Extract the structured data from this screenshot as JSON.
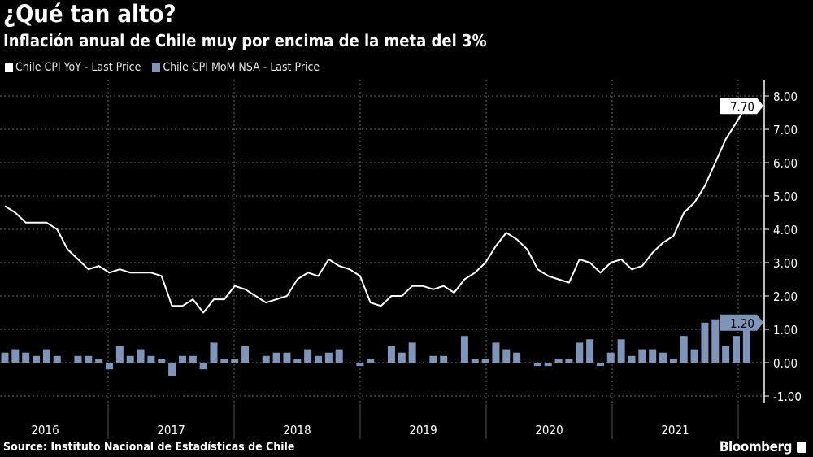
{
  "title": "¿Qué tan alto?",
  "subtitle": "Inflación anual de Chile muy por encima de la meta del 3%",
  "source": "Source: Instituto Nacional de Estadísticas de Chile",
  "brand": "Bloomberg",
  "chart_data": {
    "type": "line+bar",
    "legend_position": "top-left",
    "grid": true,
    "ylim": [
      -1.3,
      8.3
    ],
    "y_ticks": [
      "8.00",
      "7.00",
      "6.00",
      "5.00",
      "4.00",
      "3.00",
      "2.00",
      "1.00",
      "0.00",
      "-1.00"
    ],
    "y_tick_values": [
      8,
      7,
      6,
      5,
      4,
      3,
      2,
      1,
      0,
      -1
    ],
    "x_ticks": [
      "2016",
      "2017",
      "2018",
      "2019",
      "2020",
      "2021"
    ],
    "colors": {
      "line": "#ffffff",
      "bar": "#7e95b9",
      "grid": "#6a6a6a"
    },
    "series": [
      {
        "name": "Chile CPI YoY - Last Price",
        "type": "line",
        "last_label": "7.70",
        "values": [
          4.7,
          4.5,
          4.2,
          4.2,
          4.2,
          4.0,
          3.4,
          3.1,
          2.8,
          2.9,
          2.7,
          2.8,
          2.7,
          2.7,
          2.7,
          2.6,
          1.7,
          1.7,
          1.9,
          1.5,
          1.9,
          1.9,
          2.3,
          2.2,
          2.0,
          1.8,
          1.9,
          2.0,
          2.5,
          2.7,
          2.6,
          3.1,
          2.9,
          2.8,
          2.6,
          1.8,
          1.7,
          2.0,
          2.0,
          2.3,
          2.3,
          2.2,
          2.3,
          2.1,
          2.5,
          2.7,
          3.0,
          3.5,
          3.9,
          3.7,
          3.4,
          2.8,
          2.6,
          2.5,
          2.4,
          3.1,
          3.0,
          2.7,
          3.0,
          3.1,
          2.8,
          2.9,
          3.3,
          3.6,
          3.8,
          4.5,
          4.8,
          5.3,
          6.0,
          6.7,
          7.2,
          7.7
        ]
      },
      {
        "name": "Chile CPI MoM NSA - Last Price",
        "type": "bar",
        "last_label": "1.20",
        "values": [
          0.3,
          0.4,
          0.3,
          0.2,
          0.4,
          0.2,
          0.0,
          0.2,
          0.2,
          0.1,
          -0.2,
          0.5,
          0.2,
          0.4,
          0.2,
          0.1,
          -0.4,
          0.2,
          0.2,
          -0.2,
          0.6,
          0.1,
          0.1,
          0.5,
          0.0,
          0.2,
          0.3,
          0.3,
          0.1,
          0.4,
          0.2,
          0.3,
          0.4,
          0.0,
          -0.1,
          0.1,
          0.0,
          0.5,
          0.3,
          0.6,
          0.0,
          0.2,
          0.2,
          0.0,
          0.8,
          0.1,
          0.1,
          0.6,
          0.4,
          0.3,
          0.0,
          -0.1,
          -0.1,
          0.1,
          0.1,
          0.6,
          0.7,
          -0.1,
          0.3,
          0.7,
          0.2,
          0.4,
          0.4,
          0.3,
          0.1,
          0.8,
          0.4,
          1.2,
          1.3,
          0.5,
          0.8,
          1.2
        ]
      }
    ]
  }
}
